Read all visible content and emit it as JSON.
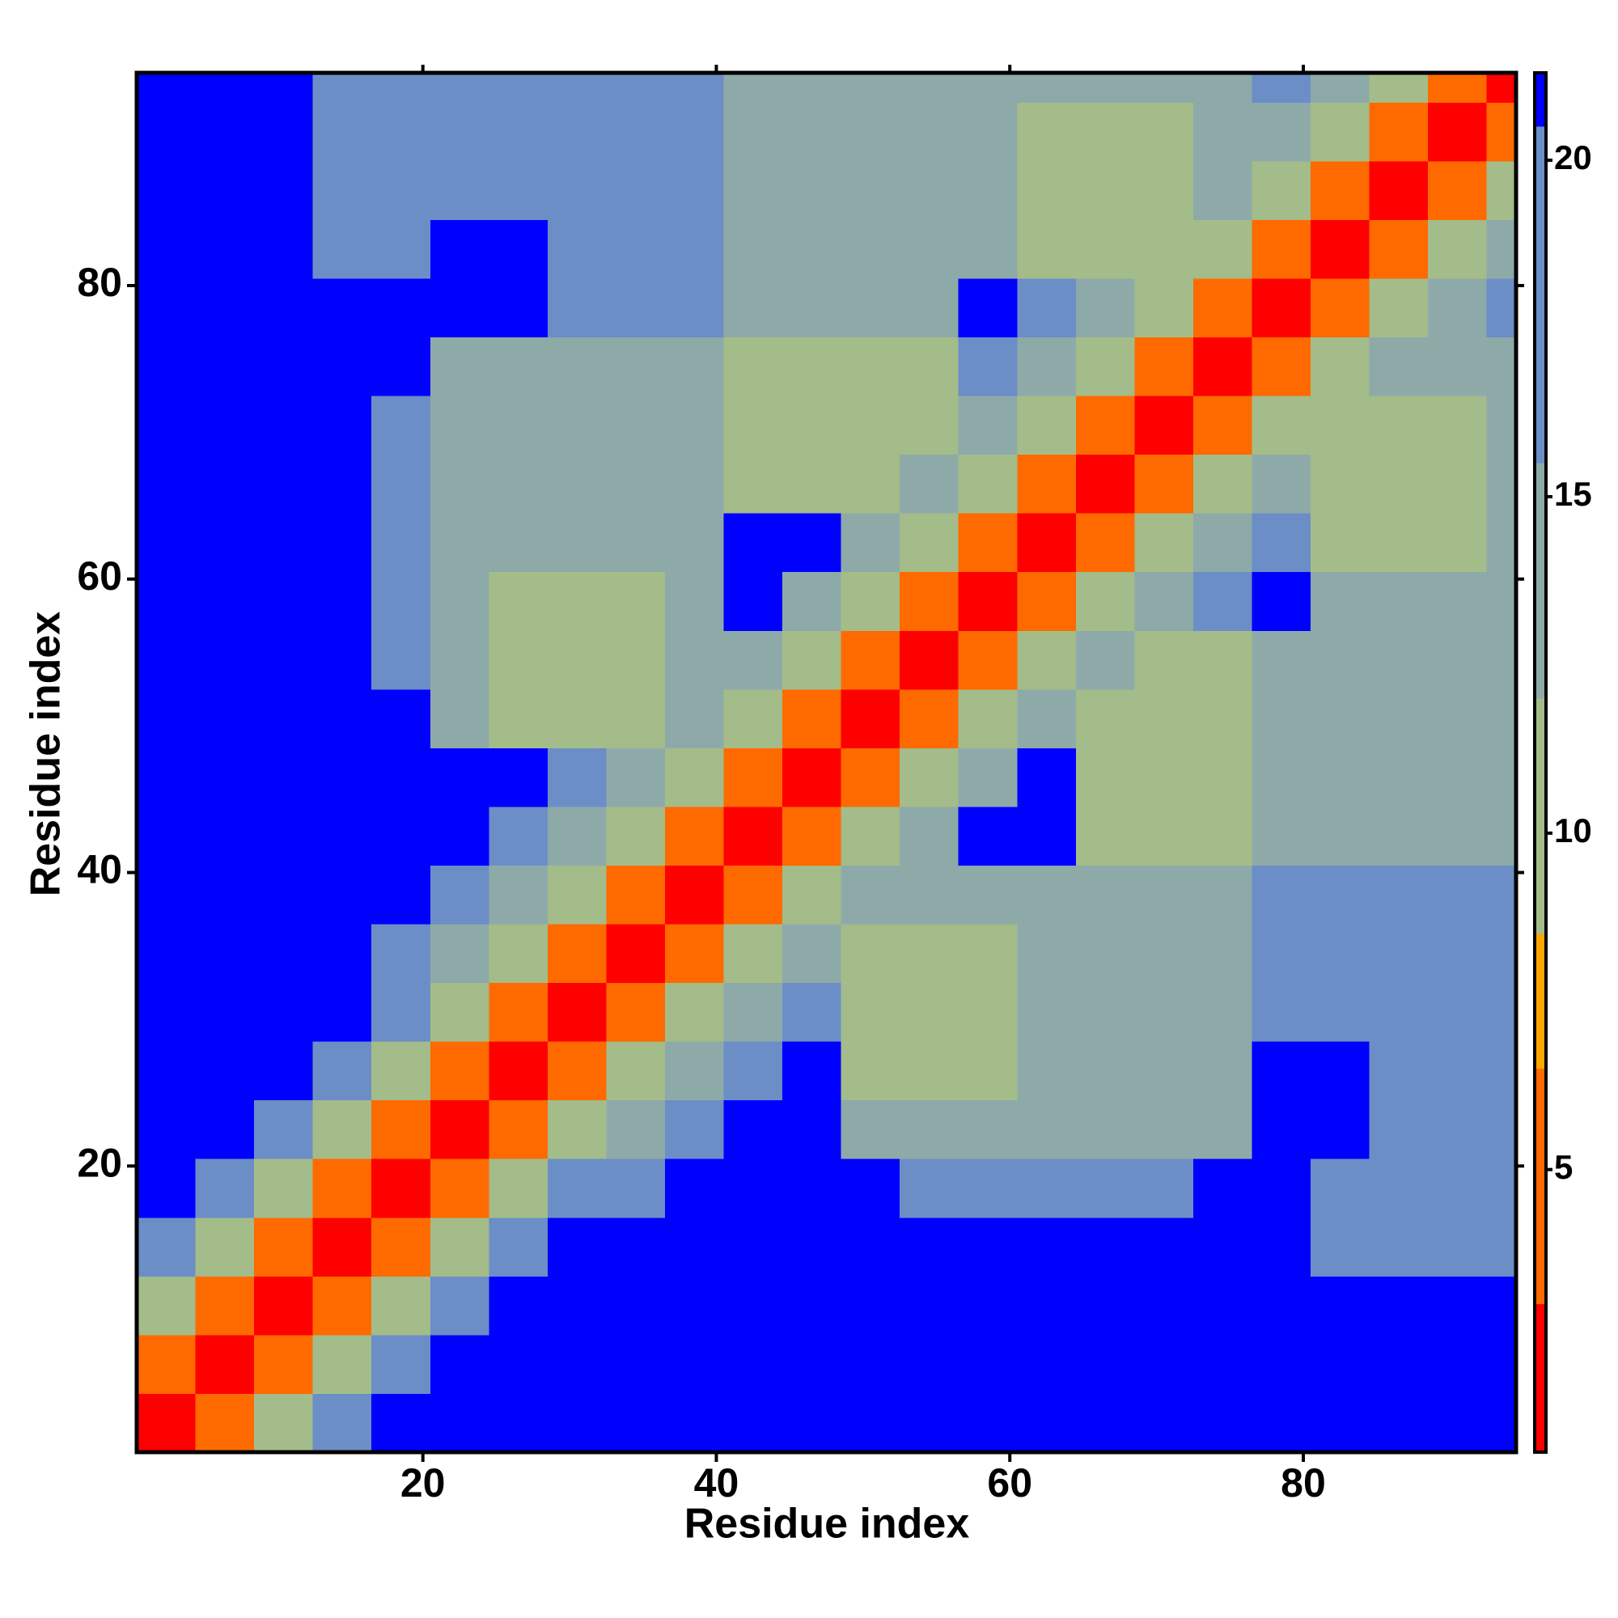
{
  "chart_data": {
    "type": "heatmap",
    "x_label": "Residue index",
    "y_label": "Residue index",
    "x_edges": [
      0.5,
      4.5,
      8.5,
      12.5,
      16.5,
      20.5,
      24.5,
      28.5,
      32.5,
      36.5,
      40.5,
      44.5,
      48.5,
      52.5,
      56.5,
      60.5,
      64.5,
      68.5,
      72.5,
      76.5,
      80.5,
      84.5,
      88.5,
      92.5,
      94.5
    ],
    "y_edges": [
      0.5,
      4.5,
      8.5,
      12.5,
      16.5,
      20.5,
      24.5,
      28.5,
      32.5,
      36.5,
      40.5,
      44.5,
      48.5,
      52.5,
      56.5,
      60.5,
      64.5,
      68.5,
      72.5,
      76.5,
      80.5,
      84.5,
      88.5,
      92.5,
      94.5
    ],
    "z": [
      [
        2,
        6,
        10,
        16,
        25,
        25,
        25,
        25,
        25,
        25,
        25,
        25,
        25,
        25,
        25,
        25,
        25,
        25,
        25,
        25,
        25,
        25,
        25,
        25
      ],
      [
        6,
        2,
        6,
        10,
        16,
        25,
        25,
        25,
        25,
        25,
        25,
        25,
        25,
        25,
        25,
        25,
        25,
        25,
        25,
        25,
        25,
        25,
        25,
        25
      ],
      [
        10,
        6,
        2,
        6,
        10,
        16,
        25,
        25,
        25,
        25,
        25,
        25,
        25,
        25,
        25,
        25,
        25,
        25,
        25,
        25,
        25,
        25,
        25,
        25
      ],
      [
        16,
        10,
        6,
        2,
        6,
        10,
        16,
        25,
        25,
        25,
        25,
        25,
        25,
        25,
        25,
        25,
        25,
        25,
        25,
        25,
        20,
        20,
        20,
        20
      ],
      [
        25,
        16,
        10,
        6,
        2,
        6,
        10,
        16,
        18,
        25,
        25,
        25,
        25,
        18,
        16,
        16,
        16,
        16,
        25,
        25,
        20,
        20,
        20,
        20
      ],
      [
        25,
        25,
        16,
        10,
        6,
        2,
        6,
        10,
        14,
        18,
        25,
        25,
        14,
        14,
        14,
        14,
        14,
        14,
        14,
        25,
        25,
        19,
        19,
        19
      ],
      [
        25,
        25,
        25,
        16,
        10,
        6,
        2,
        6,
        10,
        14,
        18,
        25,
        9,
        9,
        9,
        14,
        14,
        14,
        14,
        25,
        25,
        19,
        19,
        19
      ],
      [
        25,
        25,
        25,
        25,
        16,
        10,
        6,
        2,
        6,
        10,
        14,
        18,
        9,
        9,
        9,
        14,
        14,
        14,
        14,
        17,
        17,
        17,
        17,
        17
      ],
      [
        25,
        25,
        25,
        25,
        18,
        14,
        10,
        6,
        2,
        6,
        10,
        14,
        9,
        9,
        9,
        14,
        14,
        14,
        14,
        17,
        17,
        17,
        17,
        17
      ],
      [
        25,
        25,
        25,
        25,
        25,
        18,
        14,
        10,
        6,
        2,
        6,
        10,
        14,
        14,
        14,
        14,
        14,
        14,
        14,
        17,
        17,
        17,
        17,
        17
      ],
      [
        25,
        25,
        25,
        25,
        25,
        25,
        18,
        14,
        10,
        6,
        2,
        6,
        10,
        14,
        25,
        25,
        12,
        12,
        12,
        14,
        14,
        14,
        14,
        14
      ],
      [
        25,
        25,
        25,
        25,
        25,
        25,
        25,
        18,
        14,
        10,
        6,
        2,
        6,
        10,
        14,
        25,
        9,
        9,
        12,
        14,
        14,
        14,
        14,
        14
      ],
      [
        25,
        25,
        25,
        25,
        25,
        14,
        9,
        9,
        9,
        14,
        10,
        6,
        2,
        6,
        10,
        14,
        9,
        9,
        12,
        14,
        14,
        14,
        14,
        14
      ],
      [
        25,
        25,
        25,
        25,
        18,
        14,
        9,
        9,
        9,
        14,
        14,
        10,
        6,
        2,
        6,
        10,
        14,
        12,
        12,
        14,
        14,
        14,
        14,
        14
      ],
      [
        25,
        25,
        25,
        25,
        16,
        14,
        9,
        9,
        9,
        14,
        25,
        14,
        10,
        6,
        2,
        6,
        10,
        14,
        18,
        25,
        14,
        14,
        14,
        14
      ],
      [
        25,
        25,
        25,
        25,
        16,
        14,
        14,
        14,
        14,
        14,
        25,
        25,
        14,
        10,
        6,
        2,
        6,
        10,
        14,
        18,
        10,
        10,
        10,
        14
      ],
      [
        25,
        25,
        25,
        25,
        16,
        14,
        14,
        14,
        14,
        14,
        12,
        9,
        9,
        14,
        10,
        6,
        2,
        6,
        10,
        14,
        10,
        10,
        10,
        14
      ],
      [
        25,
        25,
        25,
        25,
        16,
        14,
        14,
        14,
        14,
        14,
        12,
        9,
        9,
        12,
        14,
        10,
        6,
        2,
        6,
        10,
        10,
        10,
        10,
        14
      ],
      [
        25,
        25,
        25,
        25,
        25,
        14,
        14,
        14,
        14,
        14,
        12,
        12,
        12,
        12,
        18,
        14,
        10,
        6,
        2,
        6,
        10,
        14,
        14,
        14
      ],
      [
        25,
        25,
        25,
        25,
        25,
        25,
        25,
        17,
        17,
        17,
        14,
        14,
        14,
        14,
        25,
        18,
        14,
        10,
        6,
        2,
        6,
        10,
        14,
        18
      ],
      [
        25,
        25,
        25,
        20,
        20,
        25,
        25,
        17,
        17,
        17,
        14,
        14,
        14,
        14,
        14,
        10,
        10,
        10,
        10,
        6,
        2,
        6,
        10,
        14
      ],
      [
        25,
        25,
        25,
        20,
        20,
        19,
        19,
        17,
        17,
        17,
        14,
        14,
        14,
        14,
        14,
        10,
        10,
        10,
        14,
        10,
        6,
        2,
        6,
        10
      ],
      [
        25,
        25,
        25,
        20,
        20,
        19,
        19,
        17,
        17,
        17,
        14,
        14,
        14,
        14,
        14,
        10,
        10,
        10,
        14,
        14,
        10,
        6,
        2,
        6
      ],
      [
        25,
        25,
        25,
        20,
        20,
        19,
        19,
        17,
        17,
        17,
        14,
        14,
        14,
        14,
        14,
        14,
        14,
        14,
        14,
        18,
        14,
        10,
        6,
        2
      ]
    ],
    "xlim": [
      0.5,
      94.5
    ],
    "ylim": [
      0.5,
      94.5
    ],
    "xticks": [
      20,
      40,
      60,
      80
    ],
    "yticks": [
      20,
      40,
      60,
      80
    ],
    "clim": [
      0.8,
      21.3
    ],
    "colorbar_ticks": [
      5,
      10,
      15,
      20
    ],
    "color_scale": [
      {
        "max": 3,
        "color": "#ff0000"
      },
      {
        "max": 6.5,
        "color": "#ff6a00"
      },
      {
        "max": 8.5,
        "color": "#ffa500"
      },
      {
        "max": 12,
        "color": "#a3bc8a"
      },
      {
        "max": 15.5,
        "color": "#8eaaa8"
      },
      {
        "max": 20.5,
        "color": "#6b8ec6"
      }
    ],
    "over_color": "#0000ff"
  }
}
